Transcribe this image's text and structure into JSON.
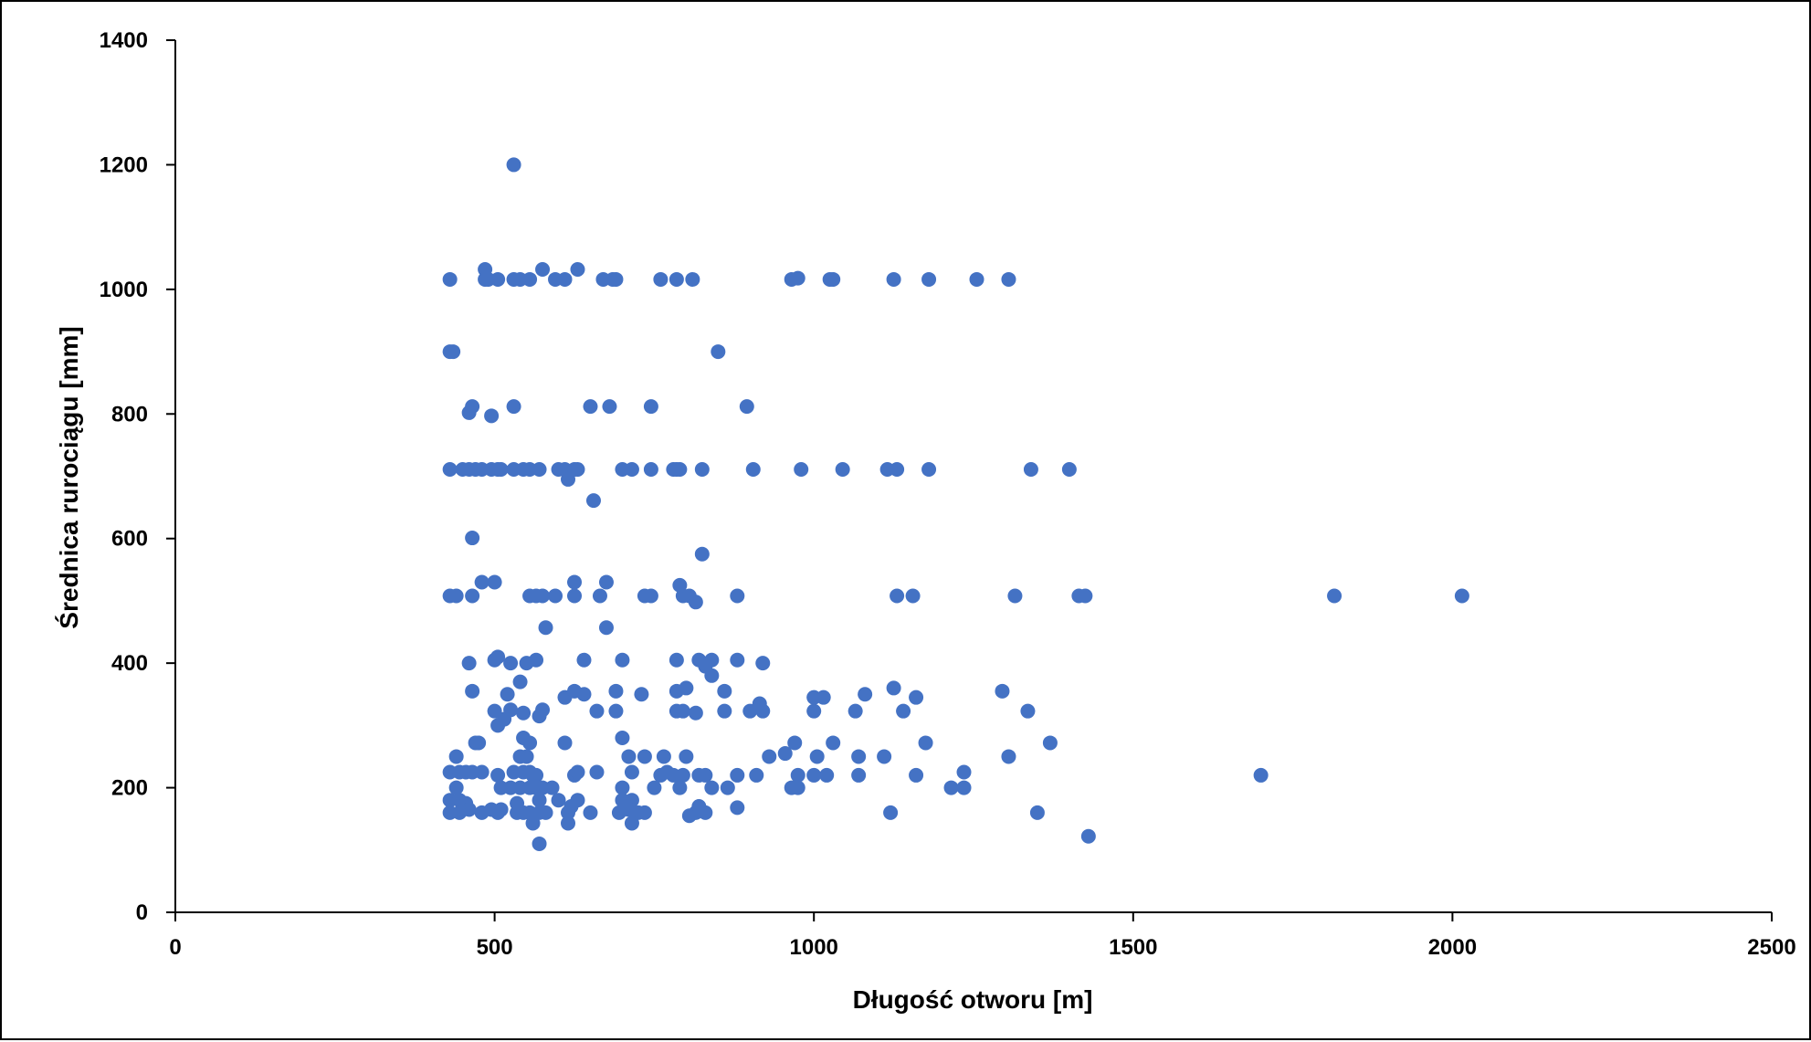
{
  "chart_data": {
    "type": "scatter",
    "title": "",
    "xlabel": "Długość otworu [m]",
    "ylabel": "Średnica rurociągu [mm]",
    "xlim": [
      0,
      2500
    ],
    "ylim": [
      0,
      1400
    ],
    "x_ticks": [
      0,
      500,
      1000,
      1500,
      2000,
      2500
    ],
    "y_ticks": [
      0,
      200,
      400,
      600,
      800,
      1000,
      1200,
      1400
    ],
    "grid": false,
    "legend": "none",
    "marker_color": "#4472C4",
    "series": [
      {
        "points": [
          [
            430,
            1016
          ],
          [
            485,
            1016
          ],
          [
            490,
            1016
          ],
          [
            505,
            1016
          ],
          [
            530,
            1016
          ],
          [
            540,
            1016
          ],
          [
            555,
            1016
          ],
          [
            595,
            1016
          ],
          [
            610,
            1016
          ],
          [
            670,
            1016
          ],
          [
            685,
            1016
          ],
          [
            690,
            1016
          ],
          [
            760,
            1016
          ],
          [
            785,
            1016
          ],
          [
            810,
            1016
          ],
          [
            965,
            1016
          ],
          [
            1025,
            1016
          ],
          [
            1030,
            1016
          ],
          [
            1125,
            1016
          ],
          [
            1180,
            1016
          ],
          [
            1255,
            1016
          ],
          [
            1305,
            1016
          ],
          [
            485,
            1032
          ],
          [
            575,
            1032
          ],
          [
            630,
            1032
          ],
          [
            975,
            1018
          ],
          [
            530,
            1200
          ],
          [
            430,
            900
          ],
          [
            435,
            900
          ],
          [
            850,
            900
          ],
          [
            465,
            812
          ],
          [
            530,
            812
          ],
          [
            650,
            812
          ],
          [
            680,
            812
          ],
          [
            745,
            812
          ],
          [
            895,
            812
          ],
          [
            460,
            802
          ],
          [
            495,
            797
          ],
          [
            430,
            711
          ],
          [
            450,
            711
          ],
          [
            460,
            711
          ],
          [
            470,
            711
          ],
          [
            480,
            711
          ],
          [
            495,
            711
          ],
          [
            505,
            711
          ],
          [
            510,
            711
          ],
          [
            530,
            711
          ],
          [
            545,
            711
          ],
          [
            555,
            711
          ],
          [
            570,
            711
          ],
          [
            600,
            711
          ],
          [
            610,
            711
          ],
          [
            625,
            711
          ],
          [
            630,
            711
          ],
          [
            700,
            711
          ],
          [
            715,
            711
          ],
          [
            745,
            711
          ],
          [
            780,
            711
          ],
          [
            785,
            711
          ],
          [
            790,
            711
          ],
          [
            825,
            711
          ],
          [
            905,
            711
          ],
          [
            980,
            711
          ],
          [
            1045,
            711
          ],
          [
            1115,
            711
          ],
          [
            1130,
            711
          ],
          [
            1180,
            711
          ],
          [
            1340,
            711
          ],
          [
            1400,
            711
          ],
          [
            615,
            695
          ],
          [
            655,
            661
          ],
          [
            465,
            601
          ],
          [
            825,
            575
          ],
          [
            430,
            508
          ],
          [
            440,
            508
          ],
          [
            465,
            508
          ],
          [
            555,
            508
          ],
          [
            565,
            508
          ],
          [
            575,
            508
          ],
          [
            595,
            508
          ],
          [
            625,
            508
          ],
          [
            665,
            508
          ],
          [
            735,
            508
          ],
          [
            745,
            508
          ],
          [
            795,
            508
          ],
          [
            805,
            508
          ],
          [
            880,
            508
          ],
          [
            1130,
            508
          ],
          [
            1155,
            508
          ],
          [
            1315,
            508
          ],
          [
            1415,
            508
          ],
          [
            1425,
            508
          ],
          [
            1815,
            508
          ],
          [
            2015,
            508
          ],
          [
            480,
            530
          ],
          [
            500,
            530
          ],
          [
            625,
            530
          ],
          [
            675,
            530
          ],
          [
            790,
            525
          ],
          [
            815,
            498
          ],
          [
            580,
            457
          ],
          [
            675,
            457
          ],
          [
            460,
            400
          ],
          [
            500,
            405
          ],
          [
            505,
            410
          ],
          [
            525,
            400
          ],
          [
            550,
            400
          ],
          [
            565,
            405
          ],
          [
            640,
            405
          ],
          [
            700,
            405
          ],
          [
            785,
            405
          ],
          [
            820,
            405
          ],
          [
            830,
            395
          ],
          [
            840,
            405
          ],
          [
            880,
            405
          ],
          [
            920,
            400
          ],
          [
            465,
            355
          ],
          [
            520,
            350
          ],
          [
            540,
            370
          ],
          [
            610,
            345
          ],
          [
            625,
            355
          ],
          [
            640,
            350
          ],
          [
            690,
            355
          ],
          [
            730,
            350
          ],
          [
            785,
            355
          ],
          [
            800,
            360
          ],
          [
            840,
            380
          ],
          [
            860,
            355
          ],
          [
            915,
            335
          ],
          [
            1000,
            345
          ],
          [
            1015,
            345
          ],
          [
            1080,
            350
          ],
          [
            1125,
            360
          ],
          [
            1160,
            345
          ],
          [
            1295,
            355
          ],
          [
            500,
            323
          ],
          [
            505,
            300
          ],
          [
            515,
            310
          ],
          [
            525,
            325
          ],
          [
            545,
            320
          ],
          [
            570,
            315
          ],
          [
            575,
            325
          ],
          [
            660,
            323
          ],
          [
            690,
            323
          ],
          [
            785,
            323
          ],
          [
            795,
            323
          ],
          [
            815,
            320
          ],
          [
            860,
            323
          ],
          [
            900,
            323
          ],
          [
            920,
            323
          ],
          [
            1000,
            323
          ],
          [
            1065,
            323
          ],
          [
            1140,
            323
          ],
          [
            1335,
            323
          ],
          [
            470,
            272
          ],
          [
            475,
            272
          ],
          [
            545,
            280
          ],
          [
            555,
            272
          ],
          [
            610,
            272
          ],
          [
            700,
            280
          ],
          [
            970,
            272
          ],
          [
            1030,
            272
          ],
          [
            1175,
            272
          ],
          [
            1370,
            272
          ],
          [
            440,
            250
          ],
          [
            540,
            250
          ],
          [
            550,
            250
          ],
          [
            710,
            250
          ],
          [
            735,
            250
          ],
          [
            765,
            250
          ],
          [
            800,
            250
          ],
          [
            930,
            250
          ],
          [
            955,
            255
          ],
          [
            1005,
            250
          ],
          [
            1070,
            250
          ],
          [
            1110,
            250
          ],
          [
            1305,
            250
          ],
          [
            430,
            225
          ],
          [
            445,
            225
          ],
          [
            455,
            225
          ],
          [
            465,
            225
          ],
          [
            480,
            225
          ],
          [
            505,
            220
          ],
          [
            530,
            225
          ],
          [
            545,
            225
          ],
          [
            555,
            225
          ],
          [
            560,
            220
          ],
          [
            565,
            220
          ],
          [
            625,
            220
          ],
          [
            630,
            225
          ],
          [
            660,
            225
          ],
          [
            715,
            225
          ],
          [
            760,
            220
          ],
          [
            770,
            225
          ],
          [
            780,
            220
          ],
          [
            795,
            220
          ],
          [
            820,
            220
          ],
          [
            830,
            220
          ],
          [
            880,
            220
          ],
          [
            910,
            220
          ],
          [
            975,
            220
          ],
          [
            1000,
            220
          ],
          [
            1020,
            220
          ],
          [
            1070,
            220
          ],
          [
            1160,
            220
          ],
          [
            1235,
            225
          ],
          [
            1700,
            220
          ],
          [
            440,
            200
          ],
          [
            510,
            200
          ],
          [
            525,
            200
          ],
          [
            540,
            200
          ],
          [
            555,
            200
          ],
          [
            565,
            200
          ],
          [
            575,
            200
          ],
          [
            590,
            200
          ],
          [
            700,
            200
          ],
          [
            750,
            200
          ],
          [
            790,
            200
          ],
          [
            840,
            200
          ],
          [
            865,
            200
          ],
          [
            965,
            200
          ],
          [
            975,
            200
          ],
          [
            1215,
            200
          ],
          [
            1235,
            200
          ],
          [
            430,
            180
          ],
          [
            445,
            180
          ],
          [
            455,
            175
          ],
          [
            535,
            175
          ],
          [
            570,
            180
          ],
          [
            600,
            180
          ],
          [
            630,
            180
          ],
          [
            700,
            180
          ],
          [
            715,
            180
          ],
          [
            430,
            160
          ],
          [
            445,
            160
          ],
          [
            460,
            165
          ],
          [
            480,
            160
          ],
          [
            495,
            165
          ],
          [
            505,
            160
          ],
          [
            510,
            165
          ],
          [
            535,
            160
          ],
          [
            545,
            160
          ],
          [
            555,
            160
          ],
          [
            570,
            160
          ],
          [
            580,
            160
          ],
          [
            615,
            160
          ],
          [
            620,
            170
          ],
          [
            650,
            160
          ],
          [
            695,
            160
          ],
          [
            710,
            165
          ],
          [
            725,
            160
          ],
          [
            735,
            160
          ],
          [
            805,
            155
          ],
          [
            815,
            160
          ],
          [
            820,
            170
          ],
          [
            830,
            160
          ],
          [
            880,
            168
          ],
          [
            1120,
            160
          ],
          [
            1350,
            160
          ],
          [
            560,
            143
          ],
          [
            615,
            143
          ],
          [
            715,
            143
          ],
          [
            570,
            110
          ],
          [
            1430,
            122
          ]
        ]
      }
    ]
  }
}
